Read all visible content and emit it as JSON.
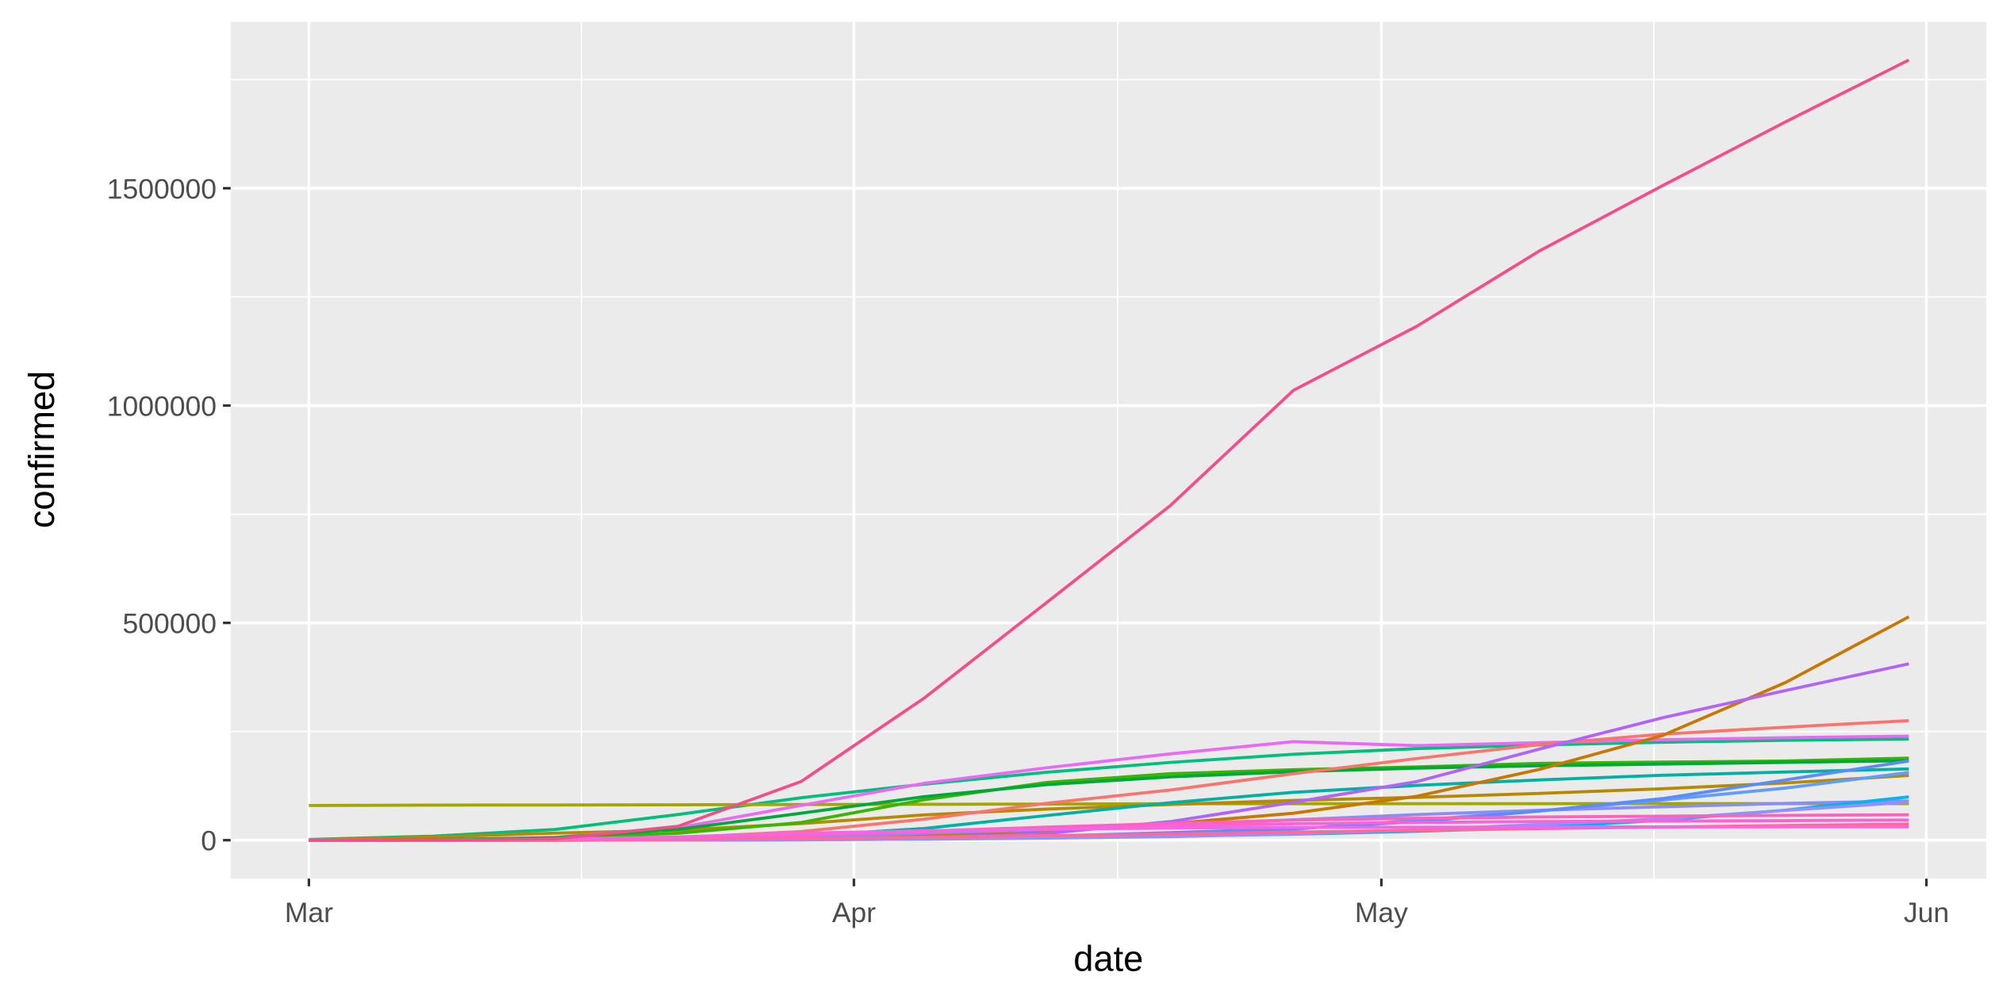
{
  "chart_data": {
    "type": "line",
    "xlabel": "date",
    "ylabel": "confirmed",
    "x": [
      0,
      7,
      14,
      21,
      28,
      35,
      42,
      49,
      56,
      63,
      70,
      77,
      84,
      91
    ],
    "xlim": [
      -4.45,
      95.4
    ],
    "xticks": [
      {
        "value": 0,
        "label": "Mar"
      },
      {
        "value": 31,
        "label": "Apr"
      },
      {
        "value": 61,
        "label": "May"
      },
      {
        "value": 92,
        "label": "Jun"
      }
    ],
    "ylim": [
      -88400,
      1883000
    ],
    "yticks": [
      0,
      500000,
      1000000,
      1500000
    ],
    "grid": true,
    "series": [
      {
        "color": "#00bf7d",
        "values": [
          1700,
          9200,
          24700,
          59100,
          97700,
          128900,
          156400,
          178900,
          197700,
          210700,
          219100,
          225400,
          229900,
          232700
        ]
      },
      {
        "color": "#a3a500",
        "values": [
          79800,
          80700,
          81000,
          81400,
          82100,
          82600,
          83100,
          83800,
          83900,
          84000,
          84000,
          84100,
          84100,
          84100
        ]
      },
      {
        "color": "#b58a00",
        "values": [
          980,
          7200,
          16200,
          23000,
          38300,
          58200,
          71700,
          82200,
          91500,
          98600,
          107600,
          118400,
          131700,
          148900
        ]
      },
      {
        "color": "#e76bf3",
        "values": [
          80,
          400,
          6400,
          28600,
          80100,
          130800,
          166800,
          198700,
          226600,
          217500,
          224400,
          231300,
          235800,
          239400
        ]
      },
      {
        "color": "#00b0a0",
        "values": [
          0,
          0,
          5,
          1200,
          9200,
          27000,
          56900,
          86300,
          110100,
          126000,
          138700,
          149400,
          156800,
          163900
        ]
      },
      {
        "color": "#39b600",
        "values": [
          130,
          1200,
          5400,
          16000,
          40700,
          93000,
          133000,
          152900,
          162100,
          168500,
          176800,
          179600,
          182200,
          188800
        ]
      },
      {
        "color": "#00a83a",
        "values": [
          130,
          1000,
          5800,
          24900,
          62100,
          100100,
          127900,
          145700,
          157600,
          165700,
          171300,
          175200,
          179000,
          183000
        ]
      },
      {
        "color": "#f8766d",
        "values": [
          40,
          270,
          1400,
          5700,
          19800,
          48400,
          85200,
          115300,
          153000,
          187800,
          220000,
          244000,
          260000,
          275000
        ]
      },
      {
        "color": "#c77800",
        "values": [
          0,
          2,
          121,
          1000,
          4000,
          11000,
          22000,
          38000,
          62000,
          101000,
          163000,
          241000,
          363000,
          514000
        ]
      },
      {
        "color": "#b064f8",
        "values": [
          0,
          0,
          20,
          300,
          1500,
          5400,
          15800,
          42800,
          87100,
          134700,
          209700,
          281700,
          344500,
          405800
        ]
      },
      {
        "color": "#619cff",
        "values": [
          0,
          0,
          40,
          300,
          900,
          2600,
          7500,
          14400,
          25300,
          45900,
          67300,
          92300,
          119900,
          155700
        ]
      },
      {
        "color": "#8a8cf8",
        "values": [
          20,
          60,
          340,
          1500,
          6200,
          16100,
          24400,
          35100,
          46900,
          58800,
          68800,
          76900,
          84600,
          90200
        ]
      },
      {
        "color": "#00b4f0",
        "values": [
          0,
          0,
          150,
          750,
          2400,
          4500,
          6900,
          9700,
          13800,
          20600,
          28900,
          46100,
          69100,
          99700
        ]
      },
      {
        "color": "#5a8cff",
        "values": [
          0,
          30,
          100,
          400,
          1000,
          4300,
          9200,
          17300,
          26500,
          42500,
          67100,
          95700,
          138800,
          182100
        ]
      },
      {
        "color": "#9590ff",
        "values": [
          0,
          10,
          80,
          320,
          1100,
          2400,
          4700,
          8300,
          14700,
          23500,
          36300,
          49200,
          68600,
          87500
        ]
      },
      {
        "color": "#ff62bc",
        "values": [
          2,
          170,
          900,
          3700,
          11900,
          20800,
          30000,
          38500,
          46100,
          50300,
          53400,
          55300,
          57100,
          58400
        ]
      },
      {
        "color": "#fc61d5",
        "values": [
          10,
          300,
          1700,
          4600,
          11800,
          19700,
          26000,
          32800,
          37800,
          40800,
          42800,
          43900,
          45000,
          46300
        ]
      },
      {
        "color": "#ff6a98",
        "values": [
          10,
          200,
          1000,
          1800,
          3700,
          6800,
          10500,
          14400,
          18600,
          22700,
          26700,
          30400,
          33800,
          37100
        ]
      },
      {
        "color": "#f564e3",
        "values": [
          30,
          400,
          2600,
          7600,
          15900,
          21600,
          25400,
          27900,
          29300,
          29900,
          30300,
          30600,
          30800,
          30900
        ]
      },
      {
        "color": "#f0508a",
        "values": [
          0,
          500,
          3000,
          32000,
          135000,
          327000,
          548000,
          770000,
          1035000,
          1182000,
          1356000,
          1506000,
          1653000,
          1795000
        ]
      }
    ]
  }
}
